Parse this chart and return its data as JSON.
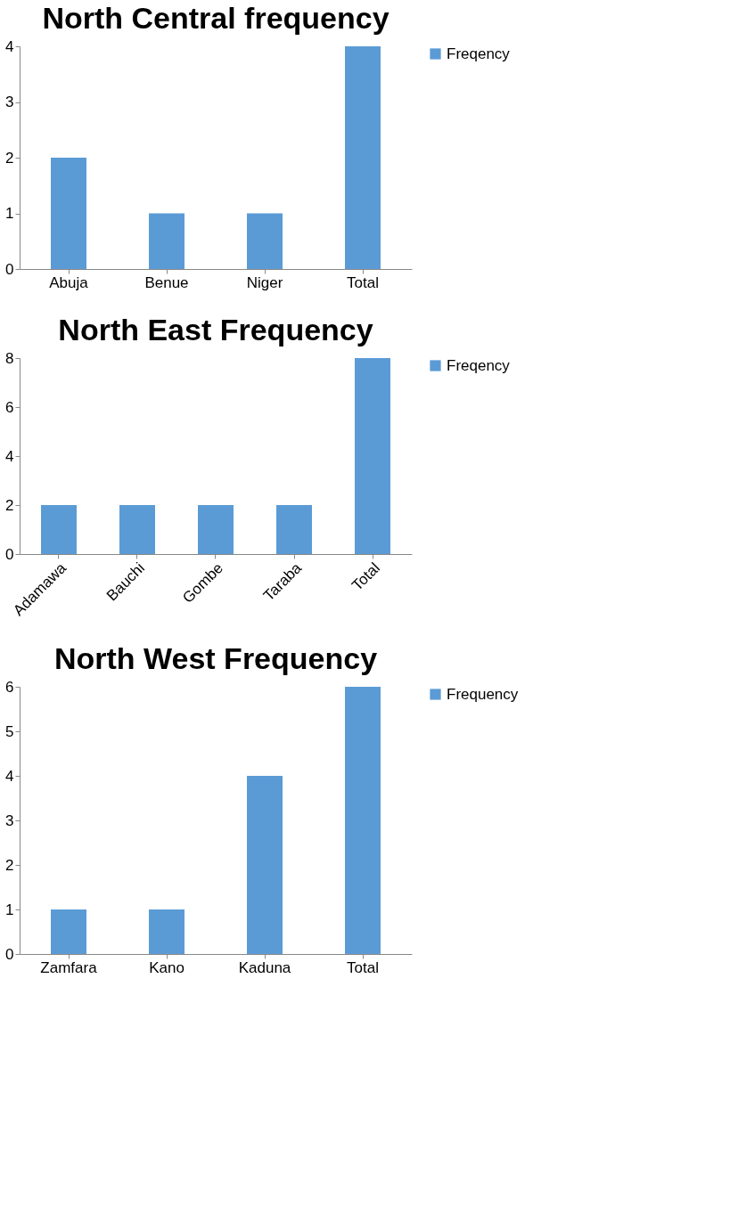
{
  "chart_data": [
    {
      "type": "bar",
      "title": "North Central frequency",
      "categories": [
        "Abuja",
        "Benue",
        "Niger",
        "Total"
      ],
      "series": [
        {
          "name": "Freqency",
          "color": "#5b9bd5",
          "values": [
            2,
            1,
            1,
            4
          ]
        }
      ],
      "ylim": [
        0,
        4
      ],
      "yticks": [
        0,
        1,
        2,
        3,
        4
      ],
      "grid": false,
      "legend": "right"
    },
    {
      "type": "bar",
      "title": "North East Frequency",
      "categories": [
        "Adamawa",
        "Bauchi",
        "Gombe",
        "Taraba",
        "Total"
      ],
      "series": [
        {
          "name": "Freqency",
          "color": "#5b9bd5",
          "values": [
            2,
            2,
            2,
            2,
            8
          ]
        }
      ],
      "ylim": [
        0,
        8
      ],
      "yticks": [
        0,
        2,
        4,
        6,
        8
      ],
      "grid": false,
      "legend": "right"
    },
    {
      "type": "bar",
      "title": "North West Frequency",
      "categories": [
        "Zamfara",
        "Kano",
        "Kaduna",
        "Total"
      ],
      "series": [
        {
          "name": "Frequency",
          "color": "#5b9bd5",
          "values": [
            1,
            1,
            4,
            6
          ]
        }
      ],
      "ylim": [
        0,
        6
      ],
      "yticks": [
        0,
        1,
        2,
        3,
        4,
        5,
        6
      ],
      "grid": false,
      "legend": "right"
    }
  ]
}
